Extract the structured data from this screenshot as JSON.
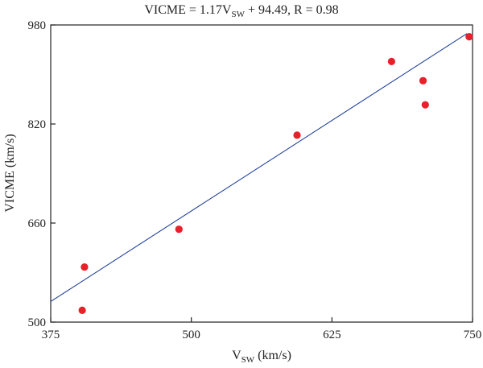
{
  "chart_data": {
    "type": "scatter",
    "title": {
      "prefix": "VICME = 1.17V",
      "subscript": "SW",
      "suffix": " + 94.49, R = 0.98"
    },
    "xlabel": {
      "main": "V",
      "subscript": "SW",
      "unit": " (km/s)"
    },
    "ylabel": "VICME (km/s)",
    "xlim": [
      375,
      750
    ],
    "ylim": [
      500,
      980
    ],
    "xticks": [
      "375",
      "500",
      "625",
      "750"
    ],
    "yticks": [
      "500",
      "660",
      "820",
      "980"
    ],
    "grid": false,
    "points": [
      {
        "x": 403,
        "y": 519
      },
      {
        "x": 405,
        "y": 589
      },
      {
        "x": 489,
        "y": 650
      },
      {
        "x": 594,
        "y": 802
      },
      {
        "x": 678,
        "y": 921
      },
      {
        "x": 706,
        "y": 890
      },
      {
        "x": 708,
        "y": 851
      },
      {
        "x": 747,
        "y": 961
      }
    ],
    "fit": {
      "slope": 1.17,
      "intercept": 94.49,
      "x_range": [
        375,
        745
      ]
    },
    "colors": {
      "points": "#e8202a",
      "fit_line": "#1f3f9a",
      "axes": "#222222"
    }
  }
}
